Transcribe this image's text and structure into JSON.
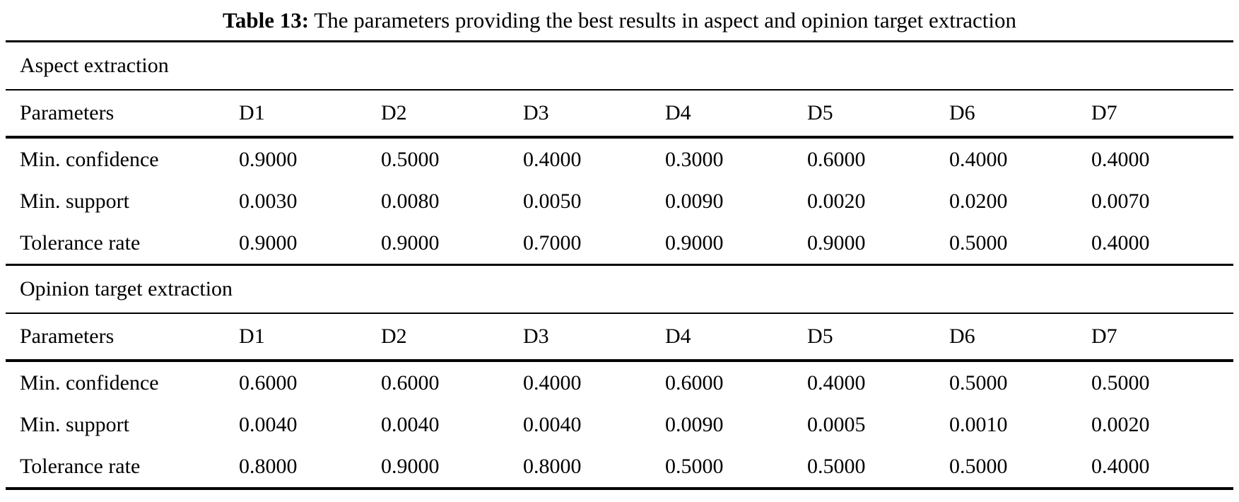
{
  "caption": {
    "label": "Table 13:",
    "text": " The parameters providing the best results in aspect and opinion target extraction"
  },
  "chart_data": {
    "type": "table",
    "title": "Table 13: The parameters providing the best results in aspect and opinion target extraction",
    "columns": [
      "Parameters",
      "D1",
      "D2",
      "D3",
      "D4",
      "D5",
      "D6",
      "D7"
    ],
    "sections": [
      {
        "name": "Aspect extraction",
        "rows": [
          {
            "label": "Min. confidence",
            "values": [
              "0.9000",
              "0.5000",
              "0.4000",
              "0.3000",
              "0.6000",
              "0.4000",
              "0.4000"
            ]
          },
          {
            "label": "Min. support",
            "values": [
              "0.0030",
              "0.0080",
              "0.0050",
              "0.0090",
              "0.0020",
              "0.0200",
              "0.0070"
            ]
          },
          {
            "label": "Tolerance rate",
            "values": [
              "0.9000",
              "0.9000",
              "0.7000",
              "0.9000",
              "0.9000",
              "0.5000",
              "0.4000"
            ]
          }
        ]
      },
      {
        "name": "Opinion target extraction",
        "rows": [
          {
            "label": "Min. confidence",
            "values": [
              "0.6000",
              "0.6000",
              "0.4000",
              "0.6000",
              "0.4000",
              "0.5000",
              "0.5000"
            ]
          },
          {
            "label": "Min. support",
            "values": [
              "0.0040",
              "0.0040",
              "0.0040",
              "0.0090",
              "0.0005",
              "0.0010",
              "0.0020"
            ]
          },
          {
            "label": "Tolerance rate",
            "values": [
              "0.8000",
              "0.9000",
              "0.8000",
              "0.5000",
              "0.5000",
              "0.5000",
              "0.4000"
            ]
          }
        ]
      }
    ]
  }
}
